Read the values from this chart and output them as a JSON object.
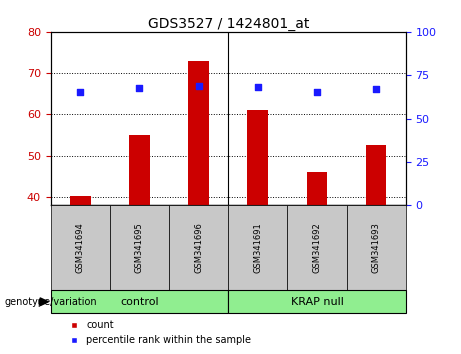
{
  "title": "GDS3527 / 1424801_at",
  "samples": [
    "GSM341694",
    "GSM341695",
    "GSM341696",
    "GSM341691",
    "GSM341692",
    "GSM341693"
  ],
  "group_labels": [
    "control",
    "KRAP null"
  ],
  "count_values": [
    40.3,
    55.0,
    73.0,
    61.0,
    46.0,
    52.5
  ],
  "percentile_values": [
    65.5,
    67.5,
    68.5,
    68.0,
    65.2,
    67.0
  ],
  "ylim_left": [
    38,
    80
  ],
  "ylim_right": [
    0,
    100
  ],
  "yticks_left": [
    40,
    50,
    60,
    70,
    80
  ],
  "yticks_right": [
    0,
    25,
    50,
    75,
    100
  ],
  "bar_color": "#cc0000",
  "dot_color": "#1a1aff",
  "bg_plot": "#ffffff",
  "bg_sample": "#c8c8c8",
  "bg_group": "#90ee90",
  "left_tick_color": "#cc0000",
  "right_tick_color": "#1a1aff",
  "legend_count_label": "count",
  "legend_pct_label": "percentile rank within the sample",
  "xlabel_left": "genotype/variation",
  "bar_width": 0.35,
  "title_fontsize": 10,
  "tick_labelsize": 8,
  "sample_fontsize": 6,
  "group_fontsize": 8,
  "legend_fontsize": 7
}
